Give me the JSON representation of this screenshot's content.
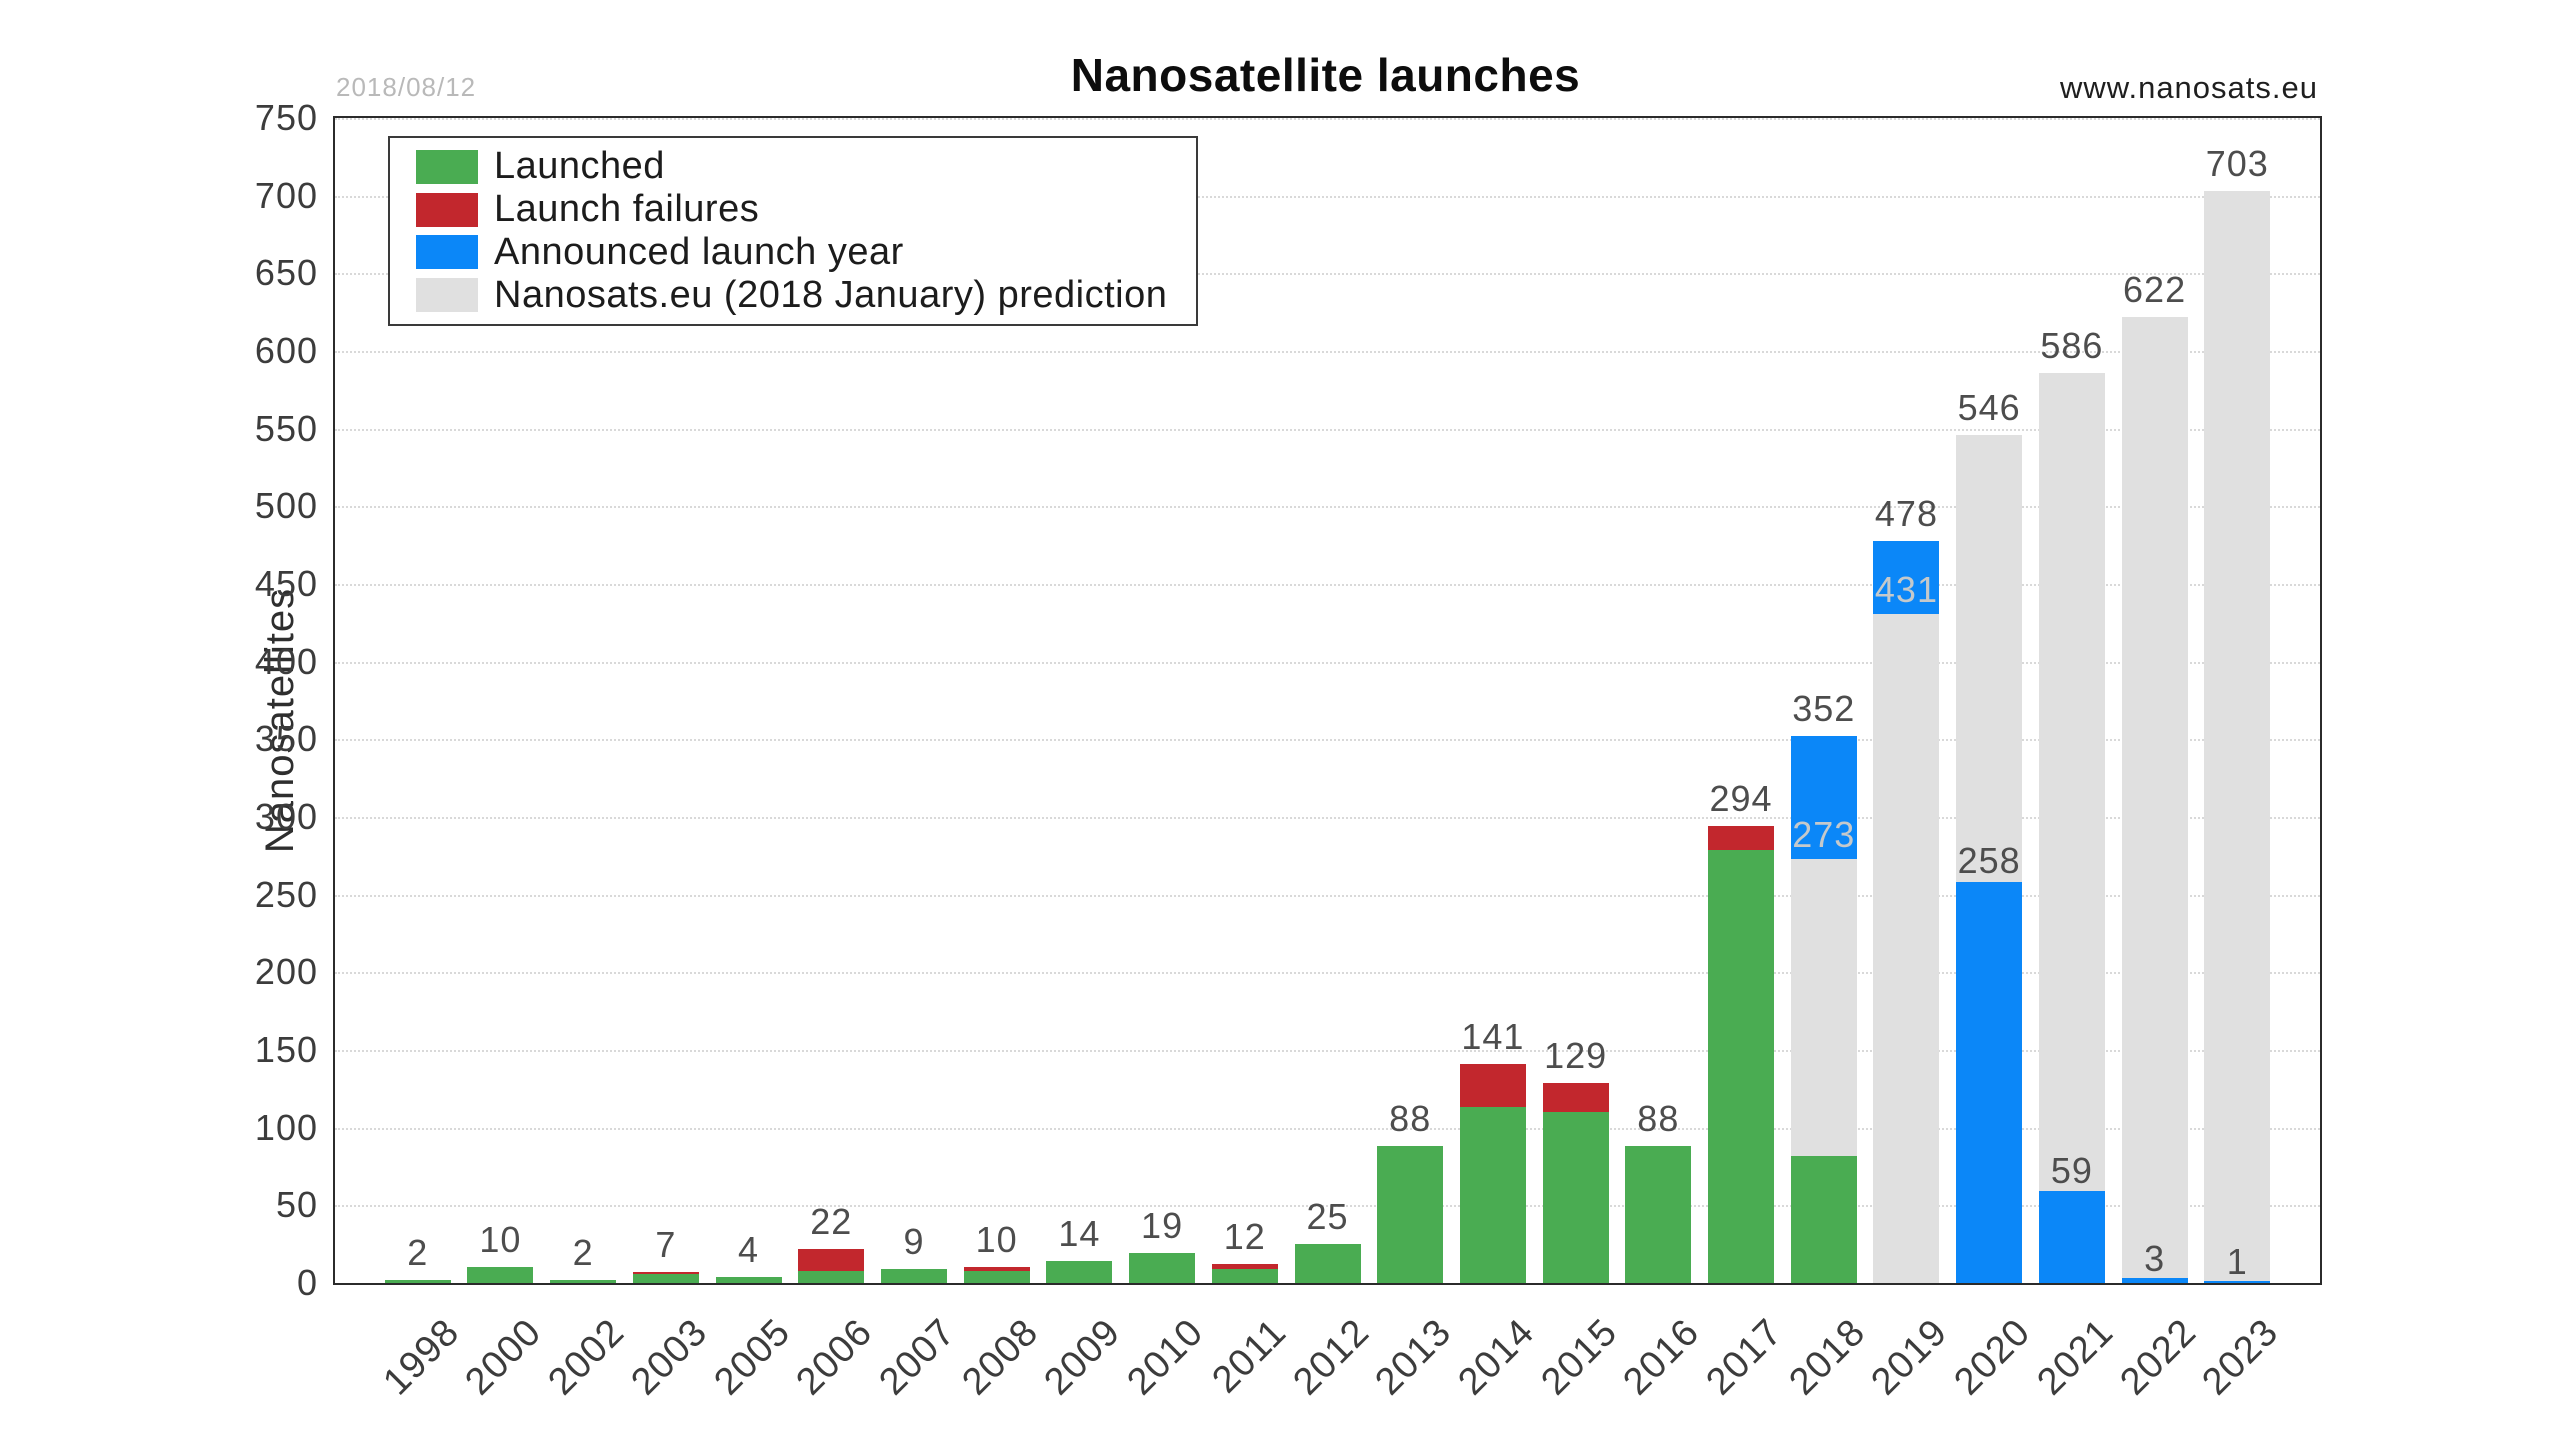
{
  "page": {
    "title": "Nanosatellite launches",
    "date_stamp": "2018/08/12",
    "website": "www.nanosats.eu"
  },
  "chart_data": {
    "type": "bar",
    "stacked": true,
    "title": "Nanosatellite launches",
    "xlabel": "",
    "ylabel": "Nanosatellites",
    "ylim": [
      0,
      750
    ],
    "ytick_step": 50,
    "yticks": [
      0,
      50,
      100,
      150,
      200,
      250,
      300,
      350,
      400,
      450,
      500,
      550,
      600,
      650,
      700,
      750
    ],
    "grid": "horizontal-dotted",
    "legend_position": "top-left",
    "colors": {
      "launched": "#4aac52",
      "failures": "#c2272d",
      "announced": "#0b87f8",
      "prediction": "#e0e0e0",
      "label_dark": "#4d4d4d",
      "label_light": "#c5c9cb"
    },
    "series": [
      {
        "name": "Launched",
        "color_key": "launched"
      },
      {
        "name": "Launch failures",
        "color_key": "failures"
      },
      {
        "name": "Announced launch year",
        "color_key": "announced"
      },
      {
        "name": "Nanosats.eu (2018 January) prediction",
        "color_key": "prediction"
      }
    ],
    "categories": [
      "1998",
      "2000",
      "2002",
      "2003",
      "2005",
      "2006",
      "2007",
      "2008",
      "2009",
      "2010",
      "2011",
      "2012",
      "2013",
      "2014",
      "2015",
      "2016",
      "2017",
      "2018",
      "2019",
      "2020",
      "2021",
      "2022",
      "2023"
    ],
    "bars": [
      {
        "year": "1998",
        "launched": 2,
        "failures": 0,
        "announced": null,
        "prediction": null,
        "top_label": "2",
        "inner_label": null
      },
      {
        "year": "2000",
        "launched": 10,
        "failures": 0,
        "announced": null,
        "prediction": null,
        "top_label": "10",
        "inner_label": null
      },
      {
        "year": "2002",
        "launched": 2,
        "failures": 0,
        "announced": null,
        "prediction": null,
        "top_label": "2",
        "inner_label": null
      },
      {
        "year": "2003",
        "launched": 6,
        "failures": 1,
        "announced": null,
        "prediction": null,
        "top_label": "7",
        "inner_label": null
      },
      {
        "year": "2005",
        "launched": 4,
        "failures": 0,
        "announced": null,
        "prediction": null,
        "top_label": "4",
        "inner_label": null
      },
      {
        "year": "2006",
        "launched": 8,
        "failures": 14,
        "announced": null,
        "prediction": null,
        "top_label": "22",
        "inner_label": null
      },
      {
        "year": "2007",
        "launched": 9,
        "failures": 0,
        "announced": null,
        "prediction": null,
        "top_label": "9",
        "inner_label": null
      },
      {
        "year": "2008",
        "launched": 8,
        "failures": 2,
        "announced": null,
        "prediction": null,
        "top_label": "10",
        "inner_label": null
      },
      {
        "year": "2009",
        "launched": 14,
        "failures": 0,
        "announced": null,
        "prediction": null,
        "top_label": "14",
        "inner_label": null
      },
      {
        "year": "2010",
        "launched": 19,
        "failures": 0,
        "announced": null,
        "prediction": null,
        "top_label": "19",
        "inner_label": null
      },
      {
        "year": "2011",
        "launched": 9,
        "failures": 3,
        "announced": null,
        "prediction": null,
        "top_label": "12",
        "inner_label": null
      },
      {
        "year": "2012",
        "launched": 25,
        "failures": 0,
        "announced": null,
        "prediction": null,
        "top_label": "25",
        "inner_label": null
      },
      {
        "year": "2013",
        "launched": 88,
        "failures": 0,
        "announced": null,
        "prediction": null,
        "top_label": "88",
        "inner_label": null
      },
      {
        "year": "2014",
        "launched": 113,
        "failures": 28,
        "announced": null,
        "prediction": null,
        "top_label": "141",
        "inner_label": null
      },
      {
        "year": "2015",
        "launched": 110,
        "failures": 19,
        "announced": null,
        "prediction": null,
        "top_label": "129",
        "inner_label": null
      },
      {
        "year": "2016",
        "launched": 88,
        "failures": 0,
        "announced": null,
        "prediction": null,
        "top_label": "88",
        "inner_label": null
      },
      {
        "year": "2017",
        "launched": 279,
        "failures": 15,
        "announced": null,
        "prediction": null,
        "top_label": "294",
        "inner_label": null
      },
      {
        "year": "2018",
        "launched": 82,
        "failures": 0,
        "announced": [
          273,
          352
        ],
        "prediction": 273,
        "top_label": "352",
        "inner_label": {
          "text": "273",
          "at": 289,
          "tone": "light"
        }
      },
      {
        "year": "2019",
        "launched": 0,
        "failures": 0,
        "announced": [
          431,
          478
        ],
        "prediction": 431,
        "top_label": "478",
        "inner_label": {
          "text": "431",
          "at": 447,
          "tone": "light"
        }
      },
      {
        "year": "2020",
        "launched": 0,
        "failures": 0,
        "announced": [
          0,
          258
        ],
        "prediction": 546,
        "top_label": "546",
        "inner_label": {
          "text": "258",
          "at": 272,
          "tone": "dark"
        }
      },
      {
        "year": "2021",
        "launched": 0,
        "failures": 0,
        "announced": [
          0,
          59
        ],
        "prediction": 586,
        "top_label": "586",
        "inner_label": {
          "text": "59",
          "at": 73,
          "tone": "dark"
        }
      },
      {
        "year": "2022",
        "launched": 0,
        "failures": 0,
        "announced": [
          0,
          3
        ],
        "prediction": 622,
        "top_label": "622",
        "inner_label": {
          "text": "3",
          "at": 16,
          "tone": "dark"
        }
      },
      {
        "year": "2023",
        "launched": 0,
        "failures": 0,
        "announced": [
          0,
          1
        ],
        "prediction": 703,
        "top_label": "703",
        "inner_label": {
          "text": "1",
          "at": 14,
          "tone": "dark"
        }
      }
    ]
  }
}
